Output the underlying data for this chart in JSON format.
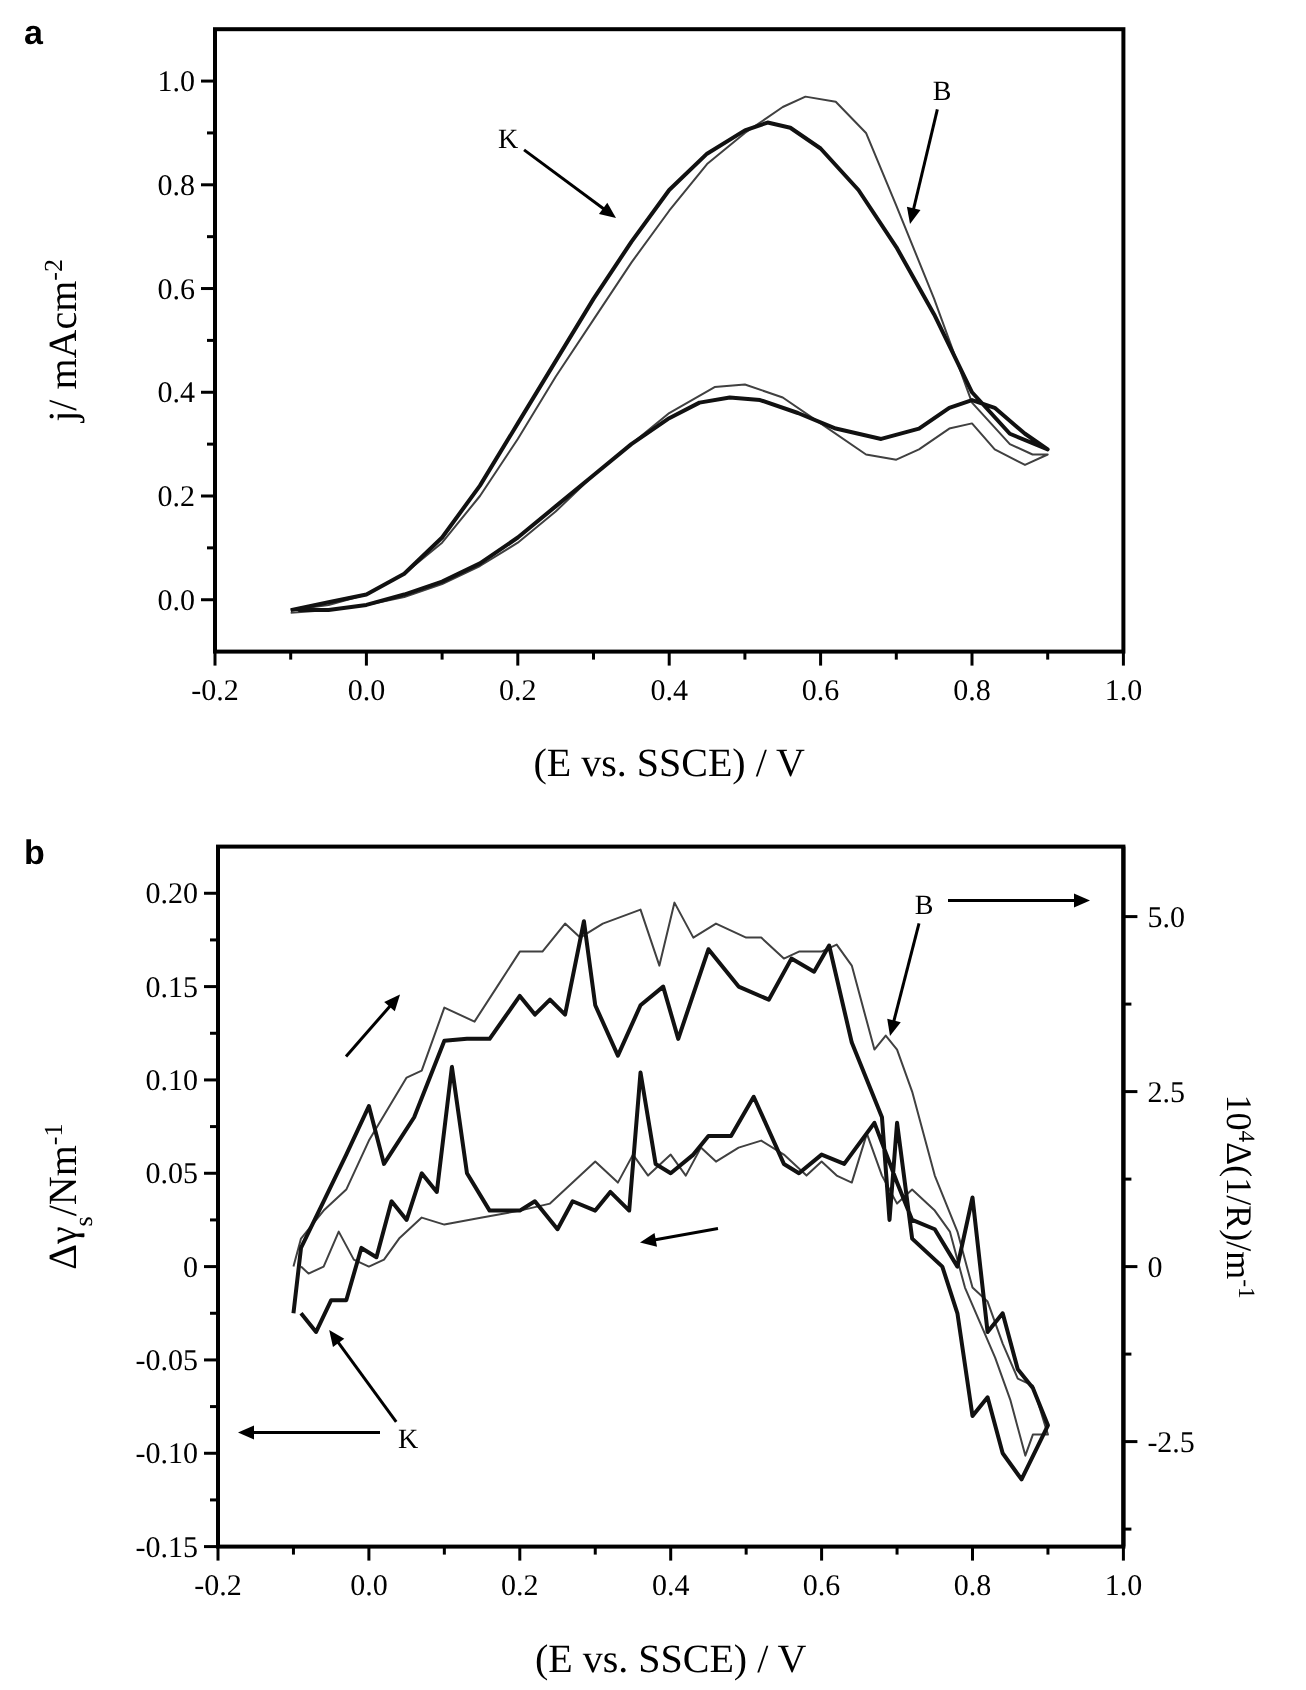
{
  "chart_data": [
    {
      "type": "line",
      "title": "a",
      "xlabel": "(E vs. SSCE) / V",
      "ylabel": "j/ mAcm$^{-2}$",
      "xlim": [
        -0.2,
        1.0
      ],
      "ylim": [
        -0.1,
        1.1
      ],
      "xticks": [
        {
          "value": -0.2,
          "label": "-0.2"
        },
        {
          "value": -0.1,
          "label": null
        },
        {
          "value": 0,
          "label": "0.0"
        },
        {
          "value": 0.1,
          "label": null
        },
        {
          "value": 0.2,
          "label": "0.2"
        },
        {
          "value": 0.3,
          "label": null
        },
        {
          "value": 0.4,
          "label": "0.4"
        },
        {
          "value": 0.5,
          "label": null
        },
        {
          "value": 0.6,
          "label": "0.6"
        },
        {
          "value": 0.7,
          "label": null
        },
        {
          "value": 0.8,
          "label": "0.8"
        },
        {
          "value": 0.9,
          "label": null
        },
        {
          "value": 1.0,
          "label": "1.0"
        }
      ],
      "yticks": [
        {
          "value": 0,
          "label": "0.0"
        },
        {
          "value": 0.1,
          "label": null
        },
        {
          "value": 0.2,
          "label": "0.2"
        },
        {
          "value": 0.3,
          "label": null
        },
        {
          "value": 0.4,
          "label": "0.4"
        },
        {
          "value": 0.5,
          "label": null
        },
        {
          "value": 0.6,
          "label": "0.6"
        },
        {
          "value": 0.7,
          "label": null
        },
        {
          "value": 0.8,
          "label": "0.8"
        },
        {
          "value": 0.9,
          "label": null
        },
        {
          "value": 1.0,
          "label": "1.0"
        }
      ],
      "series": [
        {
          "color": "#111111",
          "x": [
            -0.1,
            -0.05,
            0,
            0.05,
            0.1,
            0.15,
            0.2,
            0.25,
            0.3,
            0.35,
            0.4,
            0.45,
            0.5,
            0.53,
            0.56,
            0.6,
            0.65,
            0.7,
            0.75,
            0.8,
            0.85,
            0.9,
            0.87,
            0.83,
            0.8,
            0.77,
            0.73,
            0.68,
            0.62,
            0.57,
            0.52,
            0.48,
            0.44,
            0.4,
            0.35,
            0.3,
            0.25,
            0.2,
            0.15,
            0.1,
            0.05,
            0,
            -0.05,
            -0.09
          ],
          "values": [
            -0.02,
            -0.005,
            0.01,
            0.05,
            0.12,
            0.22,
            0.34,
            0.46,
            0.58,
            0.69,
            0.79,
            0.86,
            0.905,
            0.92,
            0.91,
            0.87,
            0.79,
            0.68,
            0.55,
            0.4,
            0.32,
            0.29,
            0.32,
            0.37,
            0.385,
            0.37,
            0.33,
            0.31,
            0.33,
            0.36,
            0.385,
            0.39,
            0.38,
            0.35,
            0.3,
            0.24,
            0.18,
            0.12,
            0.07,
            0.035,
            0.01,
            -0.01,
            -0.02,
            -0.02
          ]
        },
        {
          "color": "#404040",
          "x": [
            -0.1,
            -0.05,
            0,
            0.05,
            0.1,
            0.15,
            0.2,
            0.25,
            0.3,
            0.35,
            0.4,
            0.45,
            0.5,
            0.55,
            0.58,
            0.62,
            0.66,
            0.7,
            0.75,
            0.8,
            0.85,
            0.88,
            0.9,
            0.87,
            0.83,
            0.8,
            0.77,
            0.73,
            0.7,
            0.66,
            0.6,
            0.55,
            0.5,
            0.46,
            0.4,
            0.35,
            0.3,
            0.25,
            0.2,
            0.15,
            0.1,
            0.05,
            0,
            -0.05,
            -0.1
          ],
          "values": [
            -0.02,
            -0.01,
            0.01,
            0.05,
            0.11,
            0.2,
            0.31,
            0.43,
            0.54,
            0.65,
            0.75,
            0.84,
            0.9,
            0.95,
            0.97,
            0.96,
            0.9,
            0.76,
            0.58,
            0.38,
            0.3,
            0.28,
            0.28,
            0.26,
            0.29,
            0.34,
            0.33,
            0.29,
            0.27,
            0.28,
            0.34,
            0.39,
            0.415,
            0.41,
            0.36,
            0.3,
            0.24,
            0.17,
            0.11,
            0.065,
            0.03,
            0.005,
            -0.01,
            -0.02,
            -0.025
          ]
        }
      ],
      "annotations": [
        "K",
        "B"
      ]
    },
    {
      "type": "line",
      "title": "b",
      "xlabel": "(E vs. SSCE) / V",
      "ylabel": "Δγ$_{s}$/Nm$^{-1}$",
      "y2label": "10$^{4}$Δ(1/R)/m$^{-1}$",
      "xlim": [
        -0.2,
        1.0
      ],
      "ylim": [
        -0.15,
        0.225
      ],
      "y2lim": [
        -4,
        6
      ],
      "xticks": [
        {
          "value": -0.2,
          "label": "-0.2"
        },
        {
          "value": -0.1,
          "label": null
        },
        {
          "value": 0,
          "label": "0.0"
        },
        {
          "value": 0.1,
          "label": null
        },
        {
          "value": 0.2,
          "label": "0.2"
        },
        {
          "value": 0.3,
          "label": null
        },
        {
          "value": 0.4,
          "label": "0.4"
        },
        {
          "value": 0.5,
          "label": null
        },
        {
          "value": 0.6,
          "label": "0.6"
        },
        {
          "value": 0.7,
          "label": null
        },
        {
          "value": 0.8,
          "label": "0.8"
        },
        {
          "value": 0.9,
          "label": null
        },
        {
          "value": 1.0,
          "label": "1.0"
        }
      ],
      "yticks": [
        -0.15,
        {
          "value": -0.125,
          "label": null
        },
        {
          "value": -0.1,
          "label": "-0.10"
        },
        {
          "value": -0.075,
          "label": null
        },
        -0.05,
        {
          "value": -0.025,
          "label": null
        },
        0,
        {
          "value": 0.025,
          "label": null
        },
        0.05,
        {
          "value": 0.075,
          "label": null
        },
        {
          "value": 0.1,
          "label": "0.10"
        },
        {
          "value": 0.125,
          "label": null
        },
        0.15,
        {
          "value": 0.175,
          "label": null
        },
        {
          "value": 0.2,
          "label": "0.20"
        }
      ],
      "y2ticks": [
        {
          "value": -3.75,
          "label": null
        },
        -2.5,
        {
          "value": -1.25,
          "label": null
        },
        0,
        {
          "value": 1.25,
          "label": null
        },
        2.5,
        {
          "value": 3.75,
          "label": null
        },
        {
          "value": 5,
          "label": "5.0"
        }
      ],
      "series": [
        {
          "color": "#111111",
          "x": [
            -0.1,
            -0.09,
            -0.06,
            -0.03,
            0,
            0.02,
            0.06,
            0.1,
            0.13,
            0.16,
            0.2,
            0.22,
            0.24,
            0.26,
            0.285,
            0.3,
            0.33,
            0.36,
            0.39,
            0.41,
            0.45,
            0.49,
            0.53,
            0.56,
            0.59,
            0.61,
            0.64,
            0.68,
            0.69,
            0.7,
            0.72,
            0.76,
            0.78,
            0.8,
            0.82,
            0.84,
            0.865,
            0.9,
            0.88,
            0.86,
            0.84,
            0.82,
            0.8,
            0.78,
            0.75,
            0.72,
            0.7,
            0.67,
            0.63,
            0.6,
            0.57,
            0.55,
            0.51,
            0.48,
            0.45,
            0.43,
            0.4,
            0.38,
            0.36,
            0.345,
            0.32,
            0.3,
            0.27,
            0.25,
            0.22,
            0.2,
            0.16,
            0.13,
            0.11,
            0.09,
            0.07,
            0.05,
            0.03,
            0.01,
            -0.01,
            -0.03,
            -0.05,
            -0.07,
            -0.09
          ],
          "values": [
            -0.025,
            0.01,
            0.035,
            0.06,
            0.086,
            0.055,
            0.08,
            0.121,
            0.122,
            0.122,
            0.145,
            0.135,
            0.143,
            0.135,
            0.185,
            0.14,
            0.113,
            0.14,
            0.15,
            0.122,
            0.17,
            0.15,
            0.143,
            0.165,
            0.158,
            0.172,
            0.12,
            0.08,
            0.025,
            0.077,
            0.015,
            0,
            -0.025,
            -0.08,
            -0.07,
            -0.1,
            -0.114,
            -0.085,
            -0.065,
            -0.055,
            -0.025,
            -0.035,
            0.037,
            0,
            0.02,
            0.025,
            0.045,
            0.077,
            0.055,
            0.06,
            0.05,
            0.055,
            0.091,
            0.07,
            0.07,
            0.06,
            0.05,
            0.055,
            0.104,
            0.03,
            0.04,
            0.03,
            0.035,
            0.02,
            0.035,
            0.03,
            0.03,
            0.05,
            0.107,
            0.04,
            0.05,
            0.025,
            0.035,
            0.005,
            0.01,
            -0.018,
            -0.018,
            -0.035,
            -0.025
          ]
        },
        {
          "color": "#404040",
          "axis": "y2",
          "x": [
            -0.1,
            -0.09,
            -0.06,
            -0.03,
            0,
            0.05,
            0.07,
            0.1,
            0.14,
            0.17,
            0.2,
            0.23,
            0.26,
            0.28,
            0.31,
            0.36,
            0.385,
            0.405,
            0.43,
            0.46,
            0.5,
            0.52,
            0.55,
            0.57,
            0.6,
            0.62,
            0.64,
            0.66,
            0.67,
            0.685,
            0.7,
            0.72,
            0.75,
            0.78,
            0.8,
            0.82,
            0.84,
            0.86,
            0.88,
            0.9,
            0.88,
            0.87,
            0.85,
            0.83,
            0.81,
            0.79,
            0.77,
            0.75,
            0.72,
            0.7,
            0.68,
            0.66,
            0.64,
            0.62,
            0.6,
            0.58,
            0.55,
            0.52,
            0.49,
            0.46,
            0.44,
            0.42,
            0.4,
            0.37,
            0.35,
            0.33,
            0.3,
            0.27,
            0.24,
            0.2,
            0.15,
            0.1,
            0.07,
            0.04,
            0.02,
            0,
            -0.02,
            -0.04,
            -0.06,
            -0.08,
            -0.09
          ],
          "values": [
            0,
            0.4,
            0.8,
            1.1,
            1.8,
            2.7,
            2.8,
            3.7,
            3.5,
            4.0,
            4.5,
            4.5,
            4.9,
            4.7,
            4.9,
            5.1,
            4.3,
            5.2,
            4.7,
            4.9,
            4.7,
            4.7,
            4.4,
            4.5,
            4.5,
            4.6,
            4.3,
            3.5,
            3.1,
            3.3,
            3.1,
            2.5,
            1.3,
            0.5,
            -0.3,
            -0.5,
            -1.1,
            -1.6,
            -1.7,
            -2.4,
            -2.4,
            -2.7,
            -1.9,
            -1.3,
            -0.8,
            -0.3,
            0.5,
            0.8,
            1.1,
            0.9,
            1.3,
            1.9,
            1.2,
            1.3,
            1.5,
            1.3,
            1.6,
            1.8,
            1.7,
            1.5,
            1.7,
            1.3,
            1.6,
            1.3,
            1.6,
            1.2,
            1.5,
            1.2,
            0.9,
            0.8,
            0.7,
            0.6,
            0.7,
            0.4,
            0.1,
            0,
            0.1,
            0.5,
            0,
            -0.1,
            0
          ]
        }
      ],
      "annotations": [
        "K",
        "B"
      ]
    }
  ]
}
